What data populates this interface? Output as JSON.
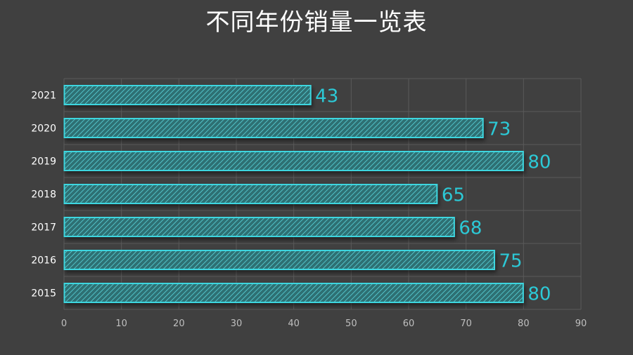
{
  "title": "不同年份销量一览表",
  "colors": {
    "background": "#404040",
    "bar_stroke": "#3ed6df",
    "bar_fill": "#2f6f73",
    "hatch": "#5fe3ea",
    "value_label": "#2cc9d6",
    "grid": "#5a5a5a",
    "tick_label": "#bfbfbf",
    "category_label": "#ffffff"
  },
  "chart_data": {
    "type": "bar",
    "orientation": "horizontal",
    "categories": [
      "2021",
      "2020",
      "2019",
      "2018",
      "2017",
      "2016",
      "2015"
    ],
    "values": [
      43,
      73,
      80,
      65,
      68,
      75,
      80
    ],
    "xlim": [
      0,
      90
    ],
    "xticks": [
      "0",
      "10",
      "20",
      "30",
      "40",
      "50",
      "60",
      "70",
      "80",
      "90"
    ],
    "grid": true,
    "fill_pattern": "diagonal-hatch",
    "title": "不同年份销量一览表",
    "xlabel": "",
    "ylabel": ""
  }
}
